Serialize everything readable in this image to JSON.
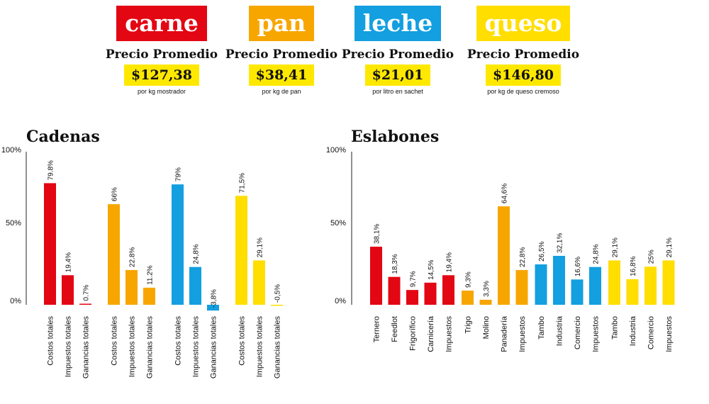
{
  "products": [
    {
      "name": "carne",
      "color": "#e30613",
      "subtitle": "Precio Promedio",
      "price": "$127,38",
      "unit": "por kg mostrador"
    },
    {
      "name": "pan",
      "color": "#f7a600",
      "subtitle": "Precio Promedio",
      "price": "$38,41",
      "unit": "por kg de pan"
    },
    {
      "name": "leche",
      "color": "#139fe0",
      "subtitle": "Precio Promedio",
      "price": "$21,01",
      "unit": "por litro en sachet"
    },
    {
      "name": "queso",
      "color": "#ffde00",
      "subtitle": "Precio Promedio",
      "price": "$146,80",
      "unit": "por kg de queso cremoso"
    }
  ],
  "chart_data": [
    {
      "type": "bar",
      "title": "Cadenas",
      "yticks": [
        "100%",
        "50%",
        "0%"
      ],
      "ylim": [
        -5,
        100
      ],
      "groups": [
        {
          "color": "#e30613",
          "bars": [
            {
              "label": "Costos totales",
              "value": 79.8,
              "text": "79.8%"
            },
            {
              "label": "Impuestos totales",
              "value": 19.4,
              "text": "19.4%"
            },
            {
              "label": "Ganancias totales",
              "value": 0.7,
              "text": "0.7%"
            }
          ]
        },
        {
          "color": "#f7a600",
          "bars": [
            {
              "label": "Costos totales",
              "value": 66,
              "text": "66%"
            },
            {
              "label": "Impuestos totales",
              "value": 22.8,
              "text": "22.8%"
            },
            {
              "label": "Ganancias totales",
              "value": 11.2,
              "text": "11.2%"
            }
          ]
        },
        {
          "color": "#139fe0",
          "bars": [
            {
              "label": "Costos totales",
              "value": 79,
              "text": "79%"
            },
            {
              "label": "Impuestos totales",
              "value": 24.8,
              "text": "24,8%"
            },
            {
              "label": "Ganancias totales",
              "value": -3.8,
              "text": "-3,8%"
            }
          ]
        },
        {
          "color": "#ffde00",
          "bars": [
            {
              "label": "Costos totales",
              "value": 71.5,
              "text": "71,5%"
            },
            {
              "label": "Impuestos totales",
              "value": 29.1,
              "text": "29,1%"
            },
            {
              "label": "Ganancias totales",
              "value": -0.5,
              "text": "-0,5%"
            }
          ]
        }
      ]
    },
    {
      "type": "bar",
      "title": "Eslabones",
      "yticks": [
        "100%",
        "50%",
        "0%"
      ],
      "ylim": [
        -5,
        100
      ],
      "groups": [
        {
          "color": "#e30613",
          "bars": [
            {
              "label": "Ternero",
              "value": 38.1,
              "text": "38,1%"
            },
            {
              "label": "Feedlot",
              "value": 18.3,
              "text": "18,3%"
            },
            {
              "label": "Frigorífico",
              "value": 9.7,
              "text": "9,7%"
            },
            {
              "label": "Carnicería",
              "value": 14.5,
              "text": "14,5%"
            },
            {
              "label": "Impuestos",
              "value": 19.4,
              "text": "19,4%"
            }
          ]
        },
        {
          "color": "#f7a600",
          "bars": [
            {
              "label": "Trigo",
              "value": 9.3,
              "text": "9,3%"
            },
            {
              "label": "Molino",
              "value": 3.3,
              "text": "3,3%"
            },
            {
              "label": "Panadería",
              "value": 64.6,
              "text": "64,6%"
            },
            {
              "label": "Impuestos",
              "value": 22.8,
              "text": "22,8%"
            }
          ]
        },
        {
          "color": "#139fe0",
          "bars": [
            {
              "label": "Tambo",
              "value": 26.5,
              "text": "26,5%"
            },
            {
              "label": "Industria",
              "value": 32.1,
              "text": "32,1%"
            },
            {
              "label": "Comercio",
              "value": 16.6,
              "text": "16,6%"
            },
            {
              "label": "Impuestos",
              "value": 24.8,
              "text": "24,8%"
            }
          ]
        },
        {
          "color": "#ffde00",
          "bars": [
            {
              "label": "Tambo",
              "value": 29.1,
              "text": "29,1%"
            },
            {
              "label": "Industria",
              "value": 16.8,
              "text": "16,8%"
            },
            {
              "label": "Comercio",
              "value": 25,
              "text": "25%"
            },
            {
              "label": "Impuestos",
              "value": 29.1,
              "text": "29,1%"
            }
          ]
        }
      ]
    }
  ]
}
